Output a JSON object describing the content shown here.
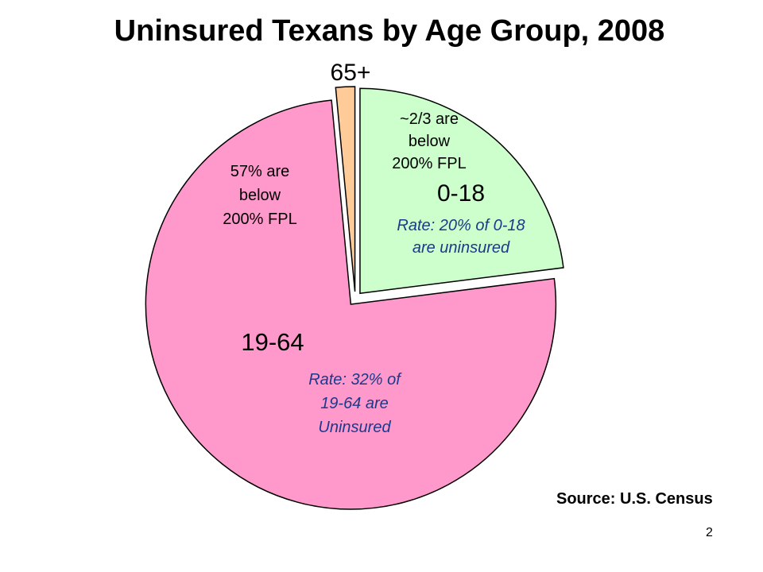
{
  "title": "Uninsured Texans by Age Group, 2008",
  "source": "Source: U.S. Census",
  "page_number": "2",
  "colors": {
    "0-18": "#ccffcc",
    "19-64": "#ff99cc",
    "65+": "#ffcc99",
    "stroke": "#000000",
    "rate_text": "#1a3a8c"
  },
  "chart_data": {
    "type": "pie",
    "title": "Uninsured Texans by Age Group, 2008",
    "slices": [
      {
        "label": "0-18",
        "share": 0.23,
        "notes": [
          "~2/3 are",
          "below",
          "200% FPL"
        ],
        "rate_text": [
          "Rate: 20% of 0-18",
          "are uninsured"
        ]
      },
      {
        "label": "19-64",
        "share": 0.755,
        "notes": [
          "57% are",
          "below",
          "200% FPL"
        ],
        "rate_text": [
          "Rate: 32% of",
          "19-64 are",
          "Uninsured"
        ]
      },
      {
        "label": "65+",
        "share": 0.015,
        "notes": [],
        "rate_text": []
      }
    ]
  }
}
